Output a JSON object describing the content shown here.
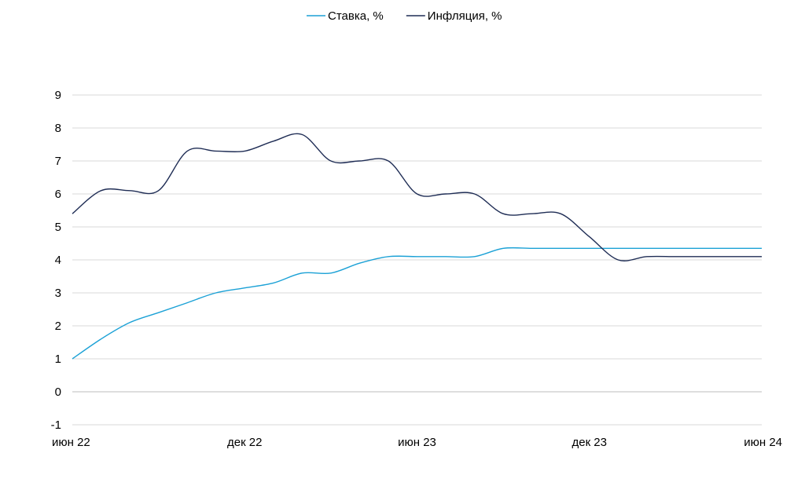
{
  "chart_data": {
    "type": "line",
    "x": [
      "2022-06",
      "2022-07",
      "2022-08",
      "2022-09",
      "2022-10",
      "2022-11",
      "2022-12",
      "2023-01",
      "2023-02",
      "2023-03",
      "2023-04",
      "2023-05",
      "2023-06",
      "2023-07",
      "2023-08",
      "2023-09",
      "2023-10",
      "2023-11",
      "2023-12",
      "2024-01",
      "2024-02",
      "2024-03",
      "2024-04",
      "2024-05",
      "2024-06"
    ],
    "x_tick_labels": [
      {
        "x": "2022-06",
        "label": "июн 22"
      },
      {
        "x": "2022-12",
        "label": "дек 22"
      },
      {
        "x": "2023-06",
        "label": "июн 23"
      },
      {
        "x": "2023-12",
        "label": "дек 23"
      },
      {
        "x": "2024-06",
        "label": "июн 24"
      }
    ],
    "yticks": [
      -1,
      0,
      1,
      2,
      3,
      4,
      5,
      6,
      7,
      8,
      9
    ],
    "ylim": [
      -1,
      9
    ],
    "grid": true,
    "legend_position": "top-center",
    "series": [
      {
        "name": "Ставка, %",
        "color": "#1ba1d6",
        "values": [
          1.0,
          1.6,
          2.1,
          2.4,
          2.7,
          3.0,
          3.15,
          3.3,
          3.6,
          3.6,
          3.9,
          4.1,
          4.1,
          4.1,
          4.1,
          4.35,
          4.35,
          4.35,
          4.35,
          4.35,
          4.35,
          4.35,
          4.35,
          4.35,
          4.35
        ]
      },
      {
        "name": "Инфляция, %",
        "color": "#1f2d55",
        "values": [
          5.4,
          6.1,
          6.1,
          6.1,
          7.3,
          7.3,
          7.3,
          7.6,
          7.8,
          7.0,
          7.0,
          7.0,
          6.0,
          6.0,
          6.0,
          5.4,
          5.4,
          5.4,
          4.7,
          4.0,
          4.1,
          4.1,
          4.1,
          4.1,
          4.1
        ]
      }
    ]
  }
}
